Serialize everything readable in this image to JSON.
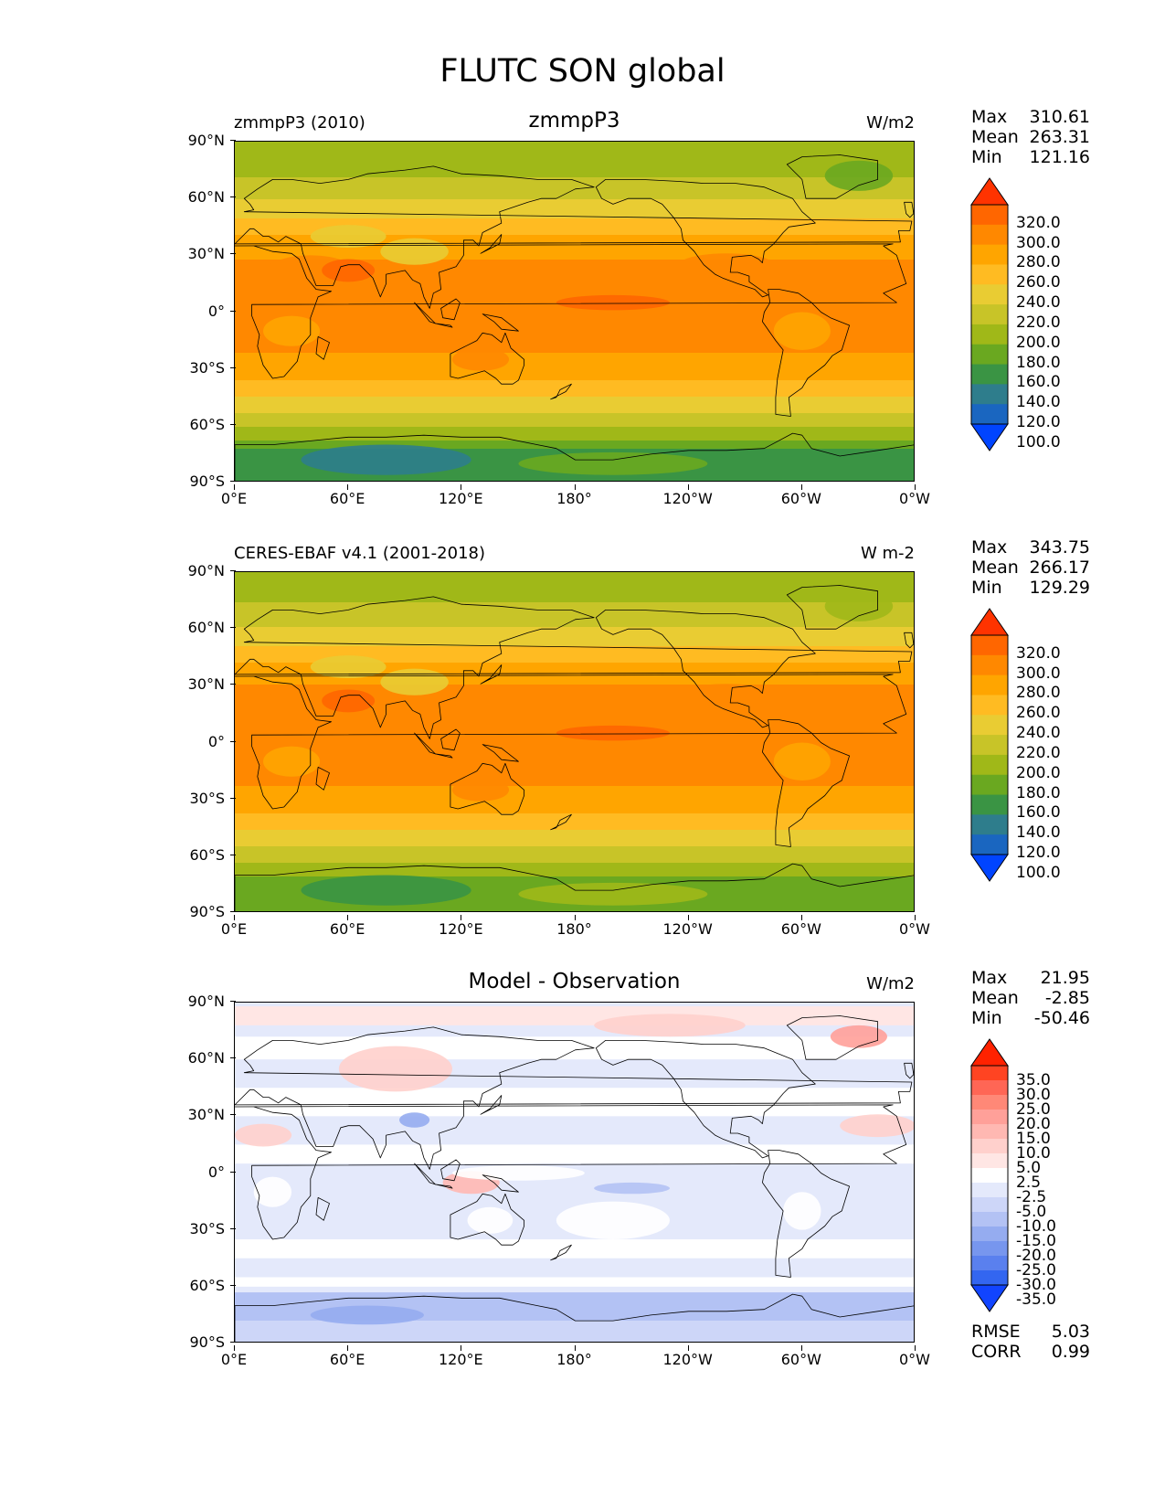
{
  "figure_title": "FLUTC SON global",
  "y_ticks": [
    "90°N",
    "60°N",
    "30°N",
    "0°",
    "30°S",
    "60°S",
    "90°S"
  ],
  "x_ticks": [
    "0°E",
    "60°E",
    "120°E",
    "180°",
    "120°W",
    "60°W",
    "0°W"
  ],
  "panels": [
    {
      "left_label": "zmmpP3 (2010)",
      "center_title": "zmmpP3",
      "units": "W/m2",
      "stats": {
        "max_label": "Max",
        "max": "310.61",
        "mean_label": "Mean",
        "mean": "263.31",
        "min_label": "Min",
        "min": "121.16"
      }
    },
    {
      "left_label": "CERES-EBAF v4.1 (2001-2018)",
      "center_title": "",
      "units": "W m-2",
      "stats": {
        "max_label": "Max",
        "max": "343.75",
        "mean_label": "Mean",
        "mean": "266.17",
        "min_label": "Min",
        "min": "129.29"
      }
    },
    {
      "left_label": "",
      "center_title": "Model - Observation",
      "units": "W/m2",
      "stats": {
        "max_label": "Max",
        "max": "21.95",
        "mean_label": "Mean",
        "mean": "-2.85",
        "min_label": "Min",
        "min": "-50.46"
      },
      "metrics": {
        "rmse_label": "RMSE",
        "rmse": "5.03",
        "corr_label": "CORR",
        "corr": "0.99"
      }
    }
  ],
  "colorbar_abs": {
    "labels": [
      "320.0",
      "300.0",
      "280.0",
      "260.0",
      "240.0",
      "220.0",
      "200.0",
      "180.0",
      "160.0",
      "140.0",
      "120.0",
      "100.0"
    ],
    "colors": [
      "#ff3300",
      "#ff6600",
      "#ff8800",
      "#ffa500",
      "#ffbb22",
      "#e9cc33",
      "#c8c428",
      "#a0b818",
      "#6aa820",
      "#3a9444",
      "#2e7d8c",
      "#1a66c0",
      "#0044ff"
    ]
  },
  "colorbar_diff": {
    "labels": [
      "35.0",
      "30.0",
      "25.0",
      "20.0",
      "15.0",
      "10.0",
      "5.0",
      "2.5",
      "-2.5",
      "-5.0",
      "-10.0",
      "-15.0",
      "-20.0",
      "-25.0",
      "-30.0",
      "-35.0"
    ],
    "colors": [
      "#ff2200",
      "#ff4422",
      "#ff6655",
      "#ff8877",
      "#ffa099",
      "#ffb8b2",
      "#ffd0cc",
      "#ffe6e4",
      "#ffffff",
      "#e4e9fb",
      "#cdd6f8",
      "#b3c2f4",
      "#95acf0",
      "#7796ee",
      "#5a80ee",
      "#3366f0",
      "#1144ff"
    ]
  },
  "chart_data": [
    {
      "type": "heatmap",
      "title": "zmmpP3",
      "subtitle": "zmmpP3 (2010)",
      "units": "W/m2",
      "xlim": [
        0,
        360
      ],
      "ylim": [
        -90,
        90
      ],
      "x_ticks": [
        "0°E",
        "60°E",
        "120°E",
        "180°",
        "120°W",
        "60°W",
        "0°W"
      ],
      "y_ticks": [
        "90°N",
        "60°N",
        "30°N",
        "0°",
        "30°S",
        "60°S",
        "90°S"
      ],
      "levels": [
        100,
        120,
        140,
        160,
        180,
        200,
        220,
        240,
        260,
        280,
        300,
        320
      ],
      "max": 310.61,
      "mean": 263.31,
      "min": 121.16,
      "zonal_profile": {
        "lat": [
          -90,
          -75,
          -65,
          -55,
          -45,
          -35,
          -20,
          0,
          20,
          35,
          45,
          55,
          65,
          75,
          90
        ],
        "value": [
          140,
          150,
          190,
          215,
          240,
          262,
          282,
          288,
          290,
          272,
          250,
          230,
          210,
          195,
          185
        ]
      }
    },
    {
      "type": "heatmap",
      "title": "CERES-EBAF v4.1 (2001-2018)",
      "units": "W m-2",
      "xlim": [
        0,
        360
      ],
      "ylim": [
        -90,
        90
      ],
      "levels": [
        100,
        120,
        140,
        160,
        180,
        200,
        220,
        240,
        260,
        280,
        300,
        320
      ],
      "max": 343.75,
      "mean": 266.17,
      "min": 129.29,
      "zonal_profile": {
        "lat": [
          -90,
          -75,
          -65,
          -55,
          -45,
          -35,
          -20,
          0,
          20,
          35,
          45,
          55,
          65,
          75,
          90
        ],
        "value": [
          160,
          165,
          195,
          220,
          242,
          265,
          284,
          290,
          292,
          275,
          252,
          232,
          212,
          198,
          190
        ]
      }
    },
    {
      "type": "heatmap",
      "title": "Model - Observation",
      "units": "W/m2",
      "xlim": [
        0,
        360
      ],
      "ylim": [
        -90,
        90
      ],
      "levels": [
        -35,
        -30,
        -25,
        -20,
        -15,
        -10,
        -5,
        -2.5,
        2.5,
        5,
        10,
        15,
        20,
        25,
        30,
        35
      ],
      "max": 21.95,
      "mean": -2.85,
      "min": -50.46,
      "rmse": 5.03,
      "corr": 0.99
    }
  ]
}
